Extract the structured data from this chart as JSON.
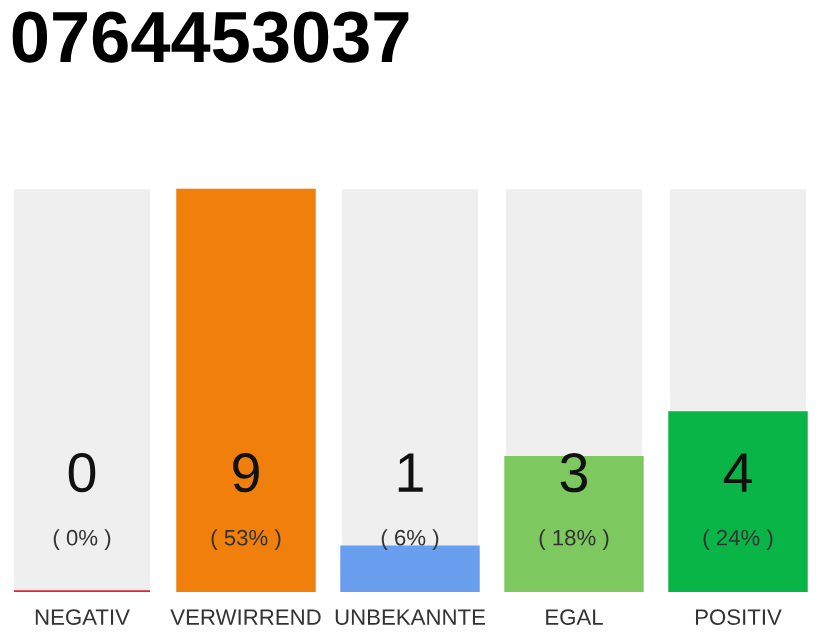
{
  "chart_data": {
    "type": "bar",
    "title": "0764453037",
    "stacked": true,
    "categories": [
      "NEGATIV",
      "VERWIRREND",
      "UNBEKANNTE",
      "EGAL",
      "POSITIV"
    ],
    "series": [
      {
        "colors": [
          "#e8203a",
          "#f07f0c",
          "#6a9eee",
          "#7ec95f",
          "#0ab548"
        ],
        "values": [
          0,
          9,
          1,
          3,
          4
        ],
        "value_labels": [
          "0",
          "9",
          "1",
          "3",
          "4"
        ]
      },
      {
        "color": "#efefef",
        "values": [
          9,
          0,
          8,
          6,
          5
        ]
      }
    ],
    "annotations": [
      "( 0% )",
      "( 53% )",
      "( 6% )",
      "( 18% )",
      "( 24% )"
    ],
    "grid": false,
    "legend": false
  }
}
